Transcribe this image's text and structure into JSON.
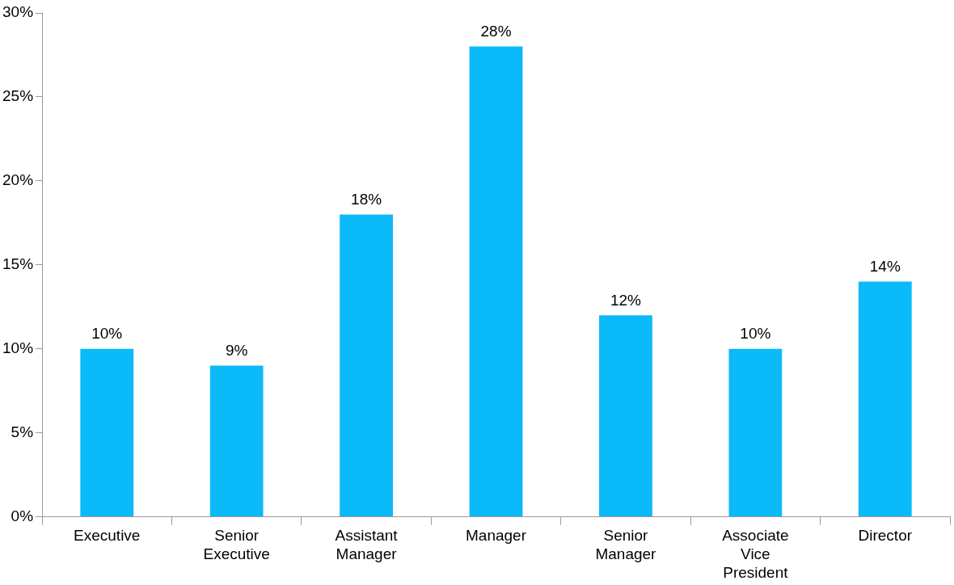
{
  "chart_data": {
    "type": "bar",
    "categories": [
      "Executive",
      "Senior Executive",
      "Assistant Manager",
      "Manager",
      "Senior Manager",
      "Associate Vice President",
      "Director"
    ],
    "values": [
      10,
      9,
      18,
      28,
      12,
      10,
      14
    ],
    "value_labels": [
      "10%",
      "9%",
      "18%",
      "28%",
      "12%",
      "10%",
      "14%"
    ],
    "color": "#0bbaf8",
    "ylim": [
      0,
      30
    ],
    "yticks": [
      {
        "value": 0,
        "label": "0%"
      },
      {
        "value": 5,
        "label": "5%"
      },
      {
        "value": 10,
        "label": "10%"
      },
      {
        "value": 15,
        "label": "15%"
      },
      {
        "value": 20,
        "label": "20%"
      },
      {
        "value": 25,
        "label": "25%"
      },
      {
        "value": 30,
        "label": "30%"
      }
    ]
  }
}
